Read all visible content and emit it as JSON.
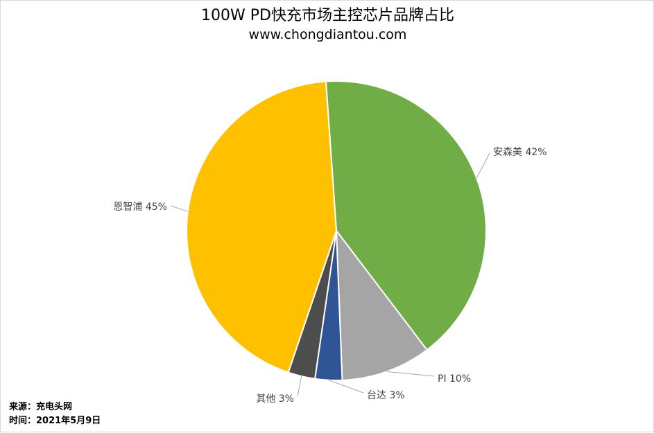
{
  "title": "100W PD快充市场主控芯片品牌占比",
  "subtitle": "www.chongdiantou.com",
  "chart_data": {
    "type": "pie",
    "title": "100W PD快充市场主控芯片品牌占比",
    "subtitle": "www.chongdiantou.com",
    "slices": [
      {
        "name": "安森美",
        "value": 42,
        "label": "安森美 42%",
        "color": "#70ad47"
      },
      {
        "name": "PI",
        "value": 10,
        "label": "PI 10%",
        "color": "#a5a5a5"
      },
      {
        "name": "台达",
        "value": 3,
        "label": "台达 3%",
        "color": "#2f5597"
      },
      {
        "name": "其他",
        "value": 3,
        "label": "其他 3%",
        "color": "#4d4d4d"
      },
      {
        "name": "恩智浦",
        "value": 45,
        "label": "恩智浦 45%",
        "color": "#ffc000"
      }
    ],
    "start_angle_deg": -4,
    "direction": "clockwise"
  },
  "footer": {
    "source": "来源：充电头网",
    "time": "时间：2021年5月9日"
  }
}
